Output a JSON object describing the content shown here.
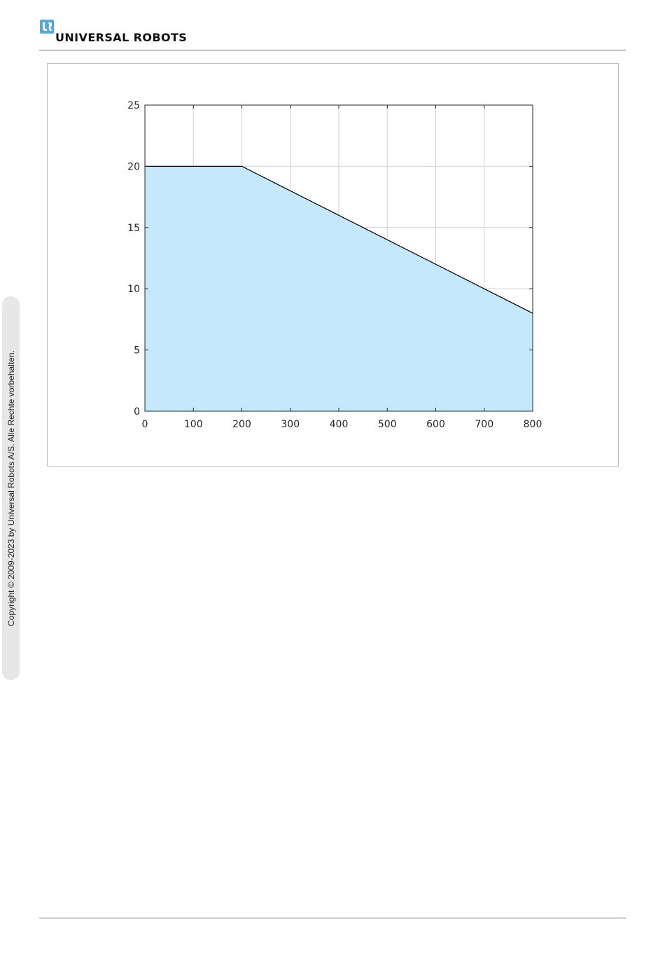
{
  "header": {
    "logo_text": "UNIVERSAL ROBOTS",
    "logo_mark_icon": "ur-logo-icon",
    "accent_color": "#5aa7d8"
  },
  "sidebar": {
    "copyright": "Copyright © 2009-2023 by Universal Robots A/S. Alle Rechte vorbehalten."
  },
  "chart_data": {
    "type": "area",
    "x": [
      0,
      200,
      800
    ],
    "values": [
      20,
      20,
      8
    ],
    "xlim": [
      0,
      800
    ],
    "ylim": [
      0,
      25
    ],
    "xticks": [
      "0",
      "100",
      "200",
      "300",
      "400",
      "500",
      "600",
      "700",
      "800"
    ],
    "yticks": [
      "0",
      "5",
      "10",
      "15",
      "20",
      "25"
    ],
    "title": "",
    "xlabel": "",
    "ylabel": "",
    "grid": true,
    "fill_color": "#c6e8fc",
    "line_color": "#000000"
  }
}
